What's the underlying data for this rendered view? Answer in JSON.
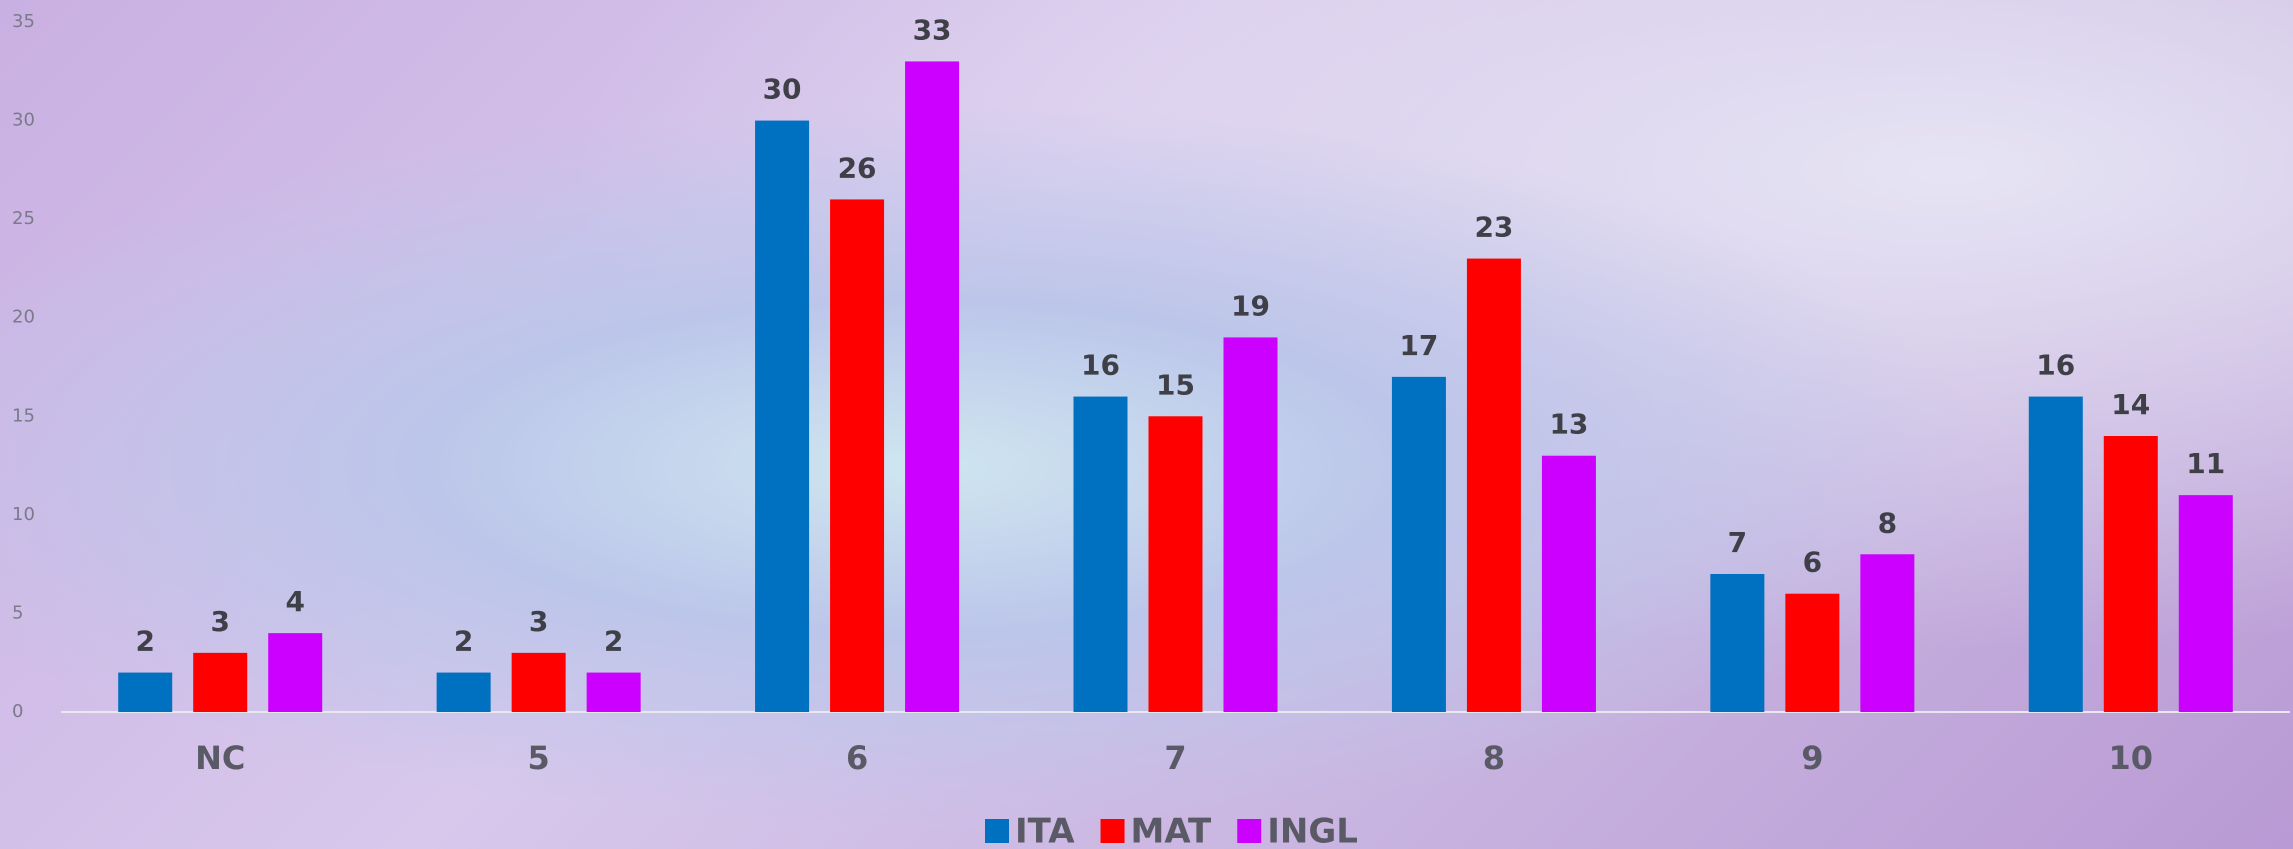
{
  "chart_data": {
    "type": "bar",
    "categories": [
      "NC",
      "5",
      "6",
      "7",
      "8",
      "9",
      "10"
    ],
    "series": [
      {
        "name": "ITA",
        "color": "#0070c0",
        "values": [
          2,
          2,
          30,
          16,
          17,
          7,
          16
        ]
      },
      {
        "name": "MAT",
        "color": "#ff0000",
        "values": [
          3,
          3,
          26,
          15,
          23,
          6,
          14
        ]
      },
      {
        "name": "INGL",
        "color": "#cc00ff",
        "values": [
          4,
          2,
          33,
          19,
          13,
          8,
          11
        ]
      }
    ],
    "ylim": [
      0,
      35
    ],
    "yticks": [
      0,
      5,
      10,
      15,
      20,
      25,
      30,
      35
    ],
    "grid": false,
    "legend": "bottom"
  }
}
